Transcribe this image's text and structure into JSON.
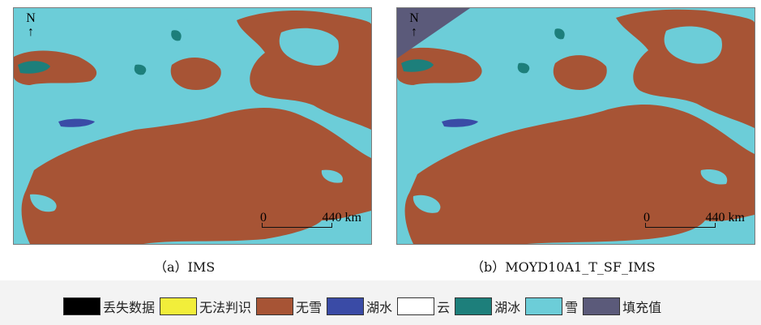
{
  "panels": [
    {
      "id": "a",
      "caption": "（a）IMS",
      "north_label": "N",
      "scale_start": "0",
      "scale_end": "440 km"
    },
    {
      "id": "b",
      "caption": "（b）MOYD10A1_T_SF_IMS",
      "north_label": "N",
      "scale_start": "0",
      "scale_end": "440 km"
    }
  ],
  "legend": [
    {
      "label": "丢失数据",
      "color": "#000000"
    },
    {
      "label": "无法判识",
      "color": "#f2ee3a"
    },
    {
      "label": "无雪",
      "color": "#a75435"
    },
    {
      "label": "湖水",
      "color": "#3a4ba6"
    },
    {
      "label": "云",
      "color": "#ffffff"
    },
    {
      "label": "湖冰",
      "color": "#1d7f7b"
    },
    {
      "label": "雪",
      "color": "#6ccdd8"
    },
    {
      "label": "填充值",
      "color": "#5b5a7a"
    }
  ]
}
